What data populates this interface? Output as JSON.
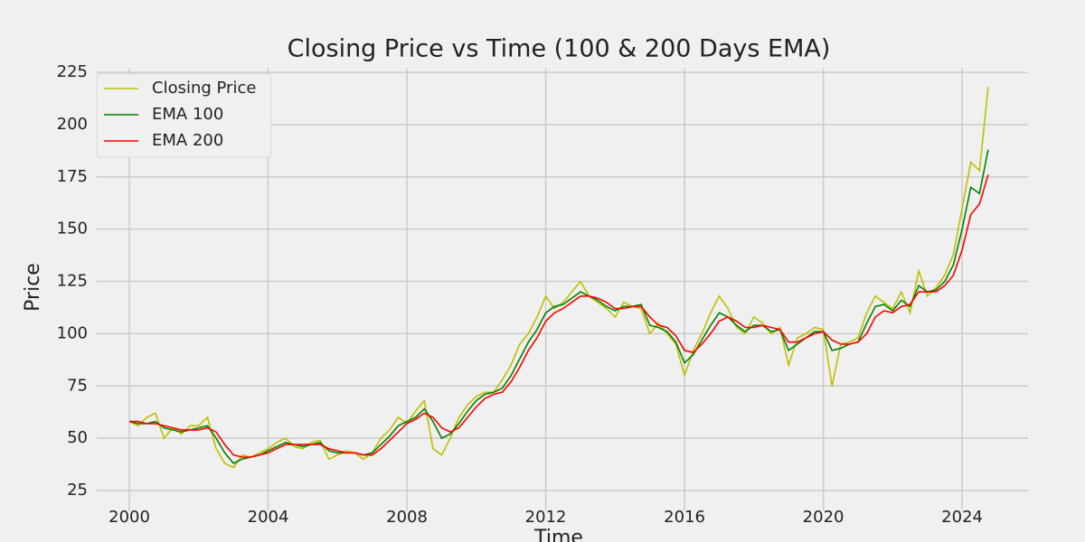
{
  "chart_data": {
    "type": "line",
    "title": "Closing Price vs Time (100 & 200 Days EMA)",
    "xlabel": "Time",
    "ylabel": "Price",
    "x": [
      2000,
      2000.25,
      2000.5,
      2000.75,
      2001,
      2001.25,
      2001.5,
      2001.75,
      2002,
      2002.25,
      2002.5,
      2002.75,
      2003,
      2003.25,
      2003.5,
      2003.75,
      2004,
      2004.25,
      2004.5,
      2004.75,
      2005,
      2005.25,
      2005.5,
      2005.75,
      2006,
      2006.25,
      2006.5,
      2006.75,
      2007,
      2007.25,
      2007.5,
      2007.75,
      2008,
      2008.25,
      2008.5,
      2008.75,
      2009,
      2009.25,
      2009.5,
      2009.75,
      2010,
      2010.25,
      2010.5,
      2010.75,
      2011,
      2011.25,
      2011.5,
      2011.75,
      2012,
      2012.25,
      2012.5,
      2012.75,
      2013,
      2013.25,
      2013.5,
      2013.75,
      2014,
      2014.25,
      2014.5,
      2014.75,
      2015,
      2015.25,
      2015.5,
      2015.75,
      2016,
      2016.25,
      2016.5,
      2016.75,
      2017,
      2017.25,
      2017.5,
      2017.75,
      2018,
      2018.25,
      2018.5,
      2018.75,
      2019,
      2019.25,
      2019.5,
      2019.75,
      2020,
      2020.25,
      2020.5,
      2020.75,
      2021,
      2021.25,
      2021.5,
      2021.75,
      2022,
      2022.25,
      2022.5,
      2022.75,
      2023,
      2023.25,
      2023.5,
      2023.75,
      2024,
      2024.25,
      2024.5,
      2024.75
    ],
    "series": [
      {
        "name": "Closing Price",
        "color": "#bfbf00",
        "values": [
          58,
          56,
          60,
          62,
          50,
          55,
          52,
          56,
          56,
          60,
          45,
          38,
          36,
          42,
          41,
          43,
          45,
          48,
          50,
          46,
          45,
          48,
          49,
          40,
          42,
          44,
          43,
          40,
          43,
          50,
          54,
          60,
          57,
          63,
          68,
          45,
          42,
          50,
          60,
          66,
          70,
          72,
          72,
          78,
          85,
          95,
          100,
          108,
          118,
          112,
          115,
          120,
          125,
          118,
          115,
          112,
          108,
          115,
          113,
          112,
          100,
          105,
          100,
          95,
          80,
          92,
          100,
          110,
          118,
          112,
          103,
          100,
          108,
          105,
          100,
          103,
          85,
          98,
          100,
          103,
          102,
          75,
          95,
          96,
          98,
          110,
          118,
          115,
          112,
          120,
          110,
          130,
          118,
          122,
          128,
          138,
          160,
          182,
          178,
          218
        ]
      },
      {
        "name": "EMA 100",
        "color": "#008000",
        "values": [
          58,
          57,
          57,
          58,
          55,
          54,
          53,
          54,
          55,
          56,
          50,
          43,
          38,
          40,
          41,
          42,
          44,
          46,
          48,
          47,
          46,
          47,
          48,
          44,
          43,
          43,
          43,
          42,
          43,
          47,
          51,
          56,
          58,
          60,
          64,
          58,
          50,
          52,
          57,
          63,
          68,
          71,
          72,
          74,
          80,
          88,
          96,
          102,
          110,
          113,
          114,
          117,
          120,
          118,
          116,
          113,
          111,
          113,
          113,
          114,
          104,
          103,
          101,
          96,
          86,
          90,
          97,
          104,
          110,
          108,
          104,
          101,
          104,
          104,
          101,
          102,
          92,
          95,
          98,
          101,
          101,
          92,
          93,
          95,
          96,
          105,
          113,
          114,
          111,
          116,
          113,
          123,
          120,
          121,
          125,
          133,
          150,
          170,
          167,
          188
        ]
      },
      {
        "name": "EMA 200",
        "color": "#ff0000",
        "values": [
          58,
          58,
          57,
          57,
          56,
          55,
          54,
          54,
          54,
          55,
          53,
          47,
          42,
          41,
          41,
          42,
          43,
          45,
          47,
          47,
          47,
          47,
          47,
          45,
          44,
          43,
          43,
          42,
          42,
          45,
          49,
          53,
          57,
          59,
          62,
          60,
          55,
          53,
          55,
          60,
          65,
          69,
          71,
          72,
          77,
          84,
          92,
          98,
          106,
          110,
          112,
          115,
          118,
          118,
          117,
          115,
          112,
          112,
          113,
          113,
          108,
          104,
          103,
          99,
          92,
          91,
          95,
          100,
          106,
          108,
          106,
          103,
          103,
          104,
          103,
          102,
          96,
          96,
          98,
          100,
          101,
          97,
          95,
          95,
          96,
          100,
          108,
          111,
          110,
          113,
          114,
          120,
          120,
          120,
          123,
          128,
          140,
          157,
          162,
          176
        ]
      }
    ],
    "xlim": [
      1999.06,
      2025.9
    ],
    "xticks": [
      2000,
      2004,
      2008,
      2012,
      2016,
      2020,
      2024
    ],
    "ylim": [
      15.5,
      227.2
    ],
    "yticks": [
      25,
      50,
      75,
      100,
      125,
      150,
      175,
      200,
      225
    ],
    "grid": true,
    "legend": "upper-left"
  }
}
